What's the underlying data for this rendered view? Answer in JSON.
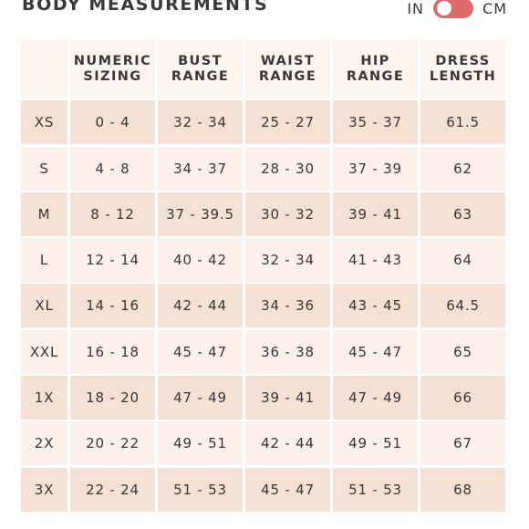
{
  "header": {
    "title": "BODY MEASUREMENTS",
    "unit_in_label": "IN",
    "unit_cm_label": "CM"
  },
  "table": {
    "columns": [
      "",
      "NUMERIC\nSIZING",
      "BUST\nRANGE",
      "WAIST\nRANGE",
      "HIP\nRANGE",
      "DRESS\nLENGTH"
    ],
    "rows": [
      [
        "XS",
        "0 - 4",
        "32 - 34",
        "25 - 27",
        "35 - 37",
        "61.5"
      ],
      [
        "S",
        "4 - 8",
        "34 - 37",
        "28 - 30",
        "37 - 39",
        "62"
      ],
      [
        "M",
        "8 - 12",
        "37 - 39.5",
        "30 - 32",
        "39 - 41",
        "63"
      ],
      [
        "L",
        "12 - 14",
        "40 - 42",
        "32 - 34",
        "41 - 43",
        "64"
      ],
      [
        "XL",
        "14 - 16",
        "42 - 44",
        "34 - 36",
        "43 - 45",
        "64.5"
      ],
      [
        "XXL",
        "16 - 18",
        "45 - 47",
        "36 - 38",
        "45 - 47",
        "65"
      ],
      [
        "1X",
        "18 - 20",
        "47 - 49",
        "39 - 41",
        "47 - 49",
        "66"
      ],
      [
        "2X",
        "20 - 22",
        "49 - 51",
        "42 - 44",
        "49 - 51",
        "67"
      ],
      [
        "3X",
        "22 - 24",
        "51 - 53",
        "45 - 47",
        "51 - 53",
        "68"
      ]
    ]
  },
  "colors": {
    "toggle_accent": "#de6a6a",
    "header_bg": "#fcf4ee",
    "row_bg_dark": "#f5e0d4",
    "row_bg_light": "#fcf1ea"
  }
}
